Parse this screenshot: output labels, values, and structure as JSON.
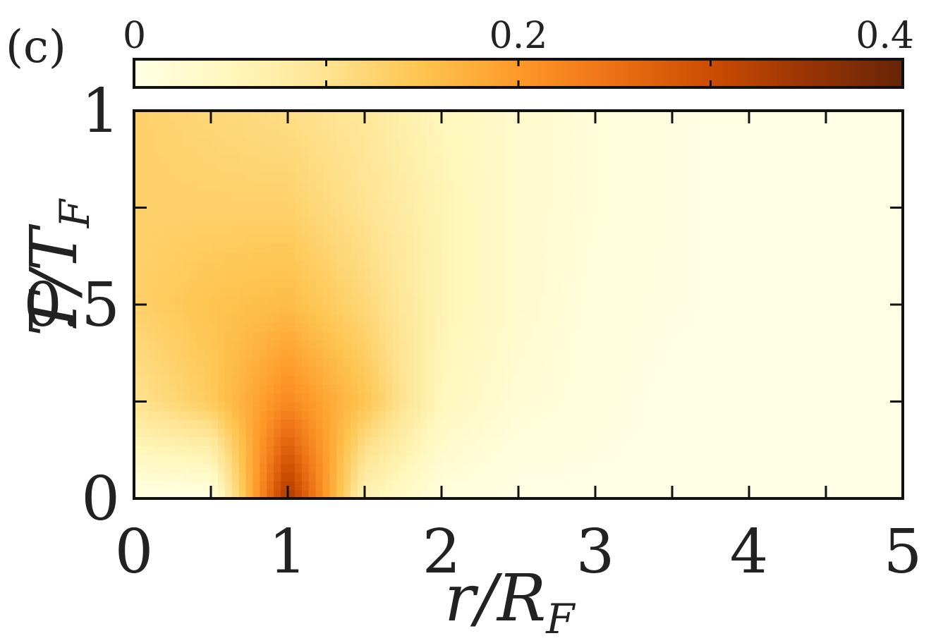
{
  "panel_label": "(c)",
  "chart_data": {
    "type": "heatmap",
    "title": "",
    "xlabel": "r / R_F",
    "ylabel": "T / T_F",
    "xlabel_parts": {
      "main": "r/R",
      "sub": "F"
    },
    "ylabel_parts": {
      "main": "T/T",
      "sub": "F"
    },
    "xlim": [
      0,
      5
    ],
    "ylim": [
      0,
      1
    ],
    "x_ticks": [
      0,
      1,
      2,
      3,
      4,
      5
    ],
    "x_tick_labels": [
      "0",
      "1",
      "2",
      "3",
      "4",
      "5"
    ],
    "y_ticks": [
      0,
      0.5,
      1
    ],
    "y_tick_labels": [
      "0",
      "0.5",
      "1"
    ],
    "x_minor_ticks": [
      0.5,
      1.5,
      2.5,
      3.5,
      4.5
    ],
    "y_minor_ticks": [
      0.25,
      0.75
    ],
    "grid": false,
    "colormap": "YlOrBr",
    "colormap_stops": [
      "#ffffe5",
      "#fff7bc",
      "#fee391",
      "#fec44f",
      "#fe9929",
      "#ec7014",
      "#cc4c02",
      "#993404",
      "#662506"
    ],
    "colorbar": {
      "position": "top",
      "range": [
        0,
        0.4
      ],
      "ticks": [
        0,
        0.2,
        0.4
      ],
      "tick_labels": [
        "0",
        "0.2",
        "0.4"
      ],
      "minor_ticks": [
        0.1,
        0.3
      ]
    },
    "grid_x": [
      0,
      0.5,
      1,
      1.5,
      2,
      2.5,
      3,
      3.5,
      4,
      4.5,
      5
    ],
    "grid_y": [
      0,
      0.25,
      0.5,
      0.75,
      1.0
    ],
    "z": [
      [
        0.0,
        0.0,
        0.34,
        0.06,
        0.01,
        0.0,
        0.0,
        0.0,
        0.0,
        0.0,
        0.0
      ],
      [
        0.1,
        0.14,
        0.22,
        0.15,
        0.05,
        0.02,
        0.01,
        0.0,
        0.0,
        0.0,
        0.0
      ],
      [
        0.13,
        0.15,
        0.16,
        0.12,
        0.06,
        0.03,
        0.01,
        0.005,
        0.0,
        0.0,
        0.0
      ],
      [
        0.13,
        0.13,
        0.13,
        0.1,
        0.06,
        0.03,
        0.015,
        0.005,
        0.0,
        0.0,
        0.0
      ],
      [
        0.13,
        0.12,
        0.11,
        0.09,
        0.05,
        0.03,
        0.015,
        0.005,
        0.0,
        0.0,
        0.0
      ]
    ]
  }
}
